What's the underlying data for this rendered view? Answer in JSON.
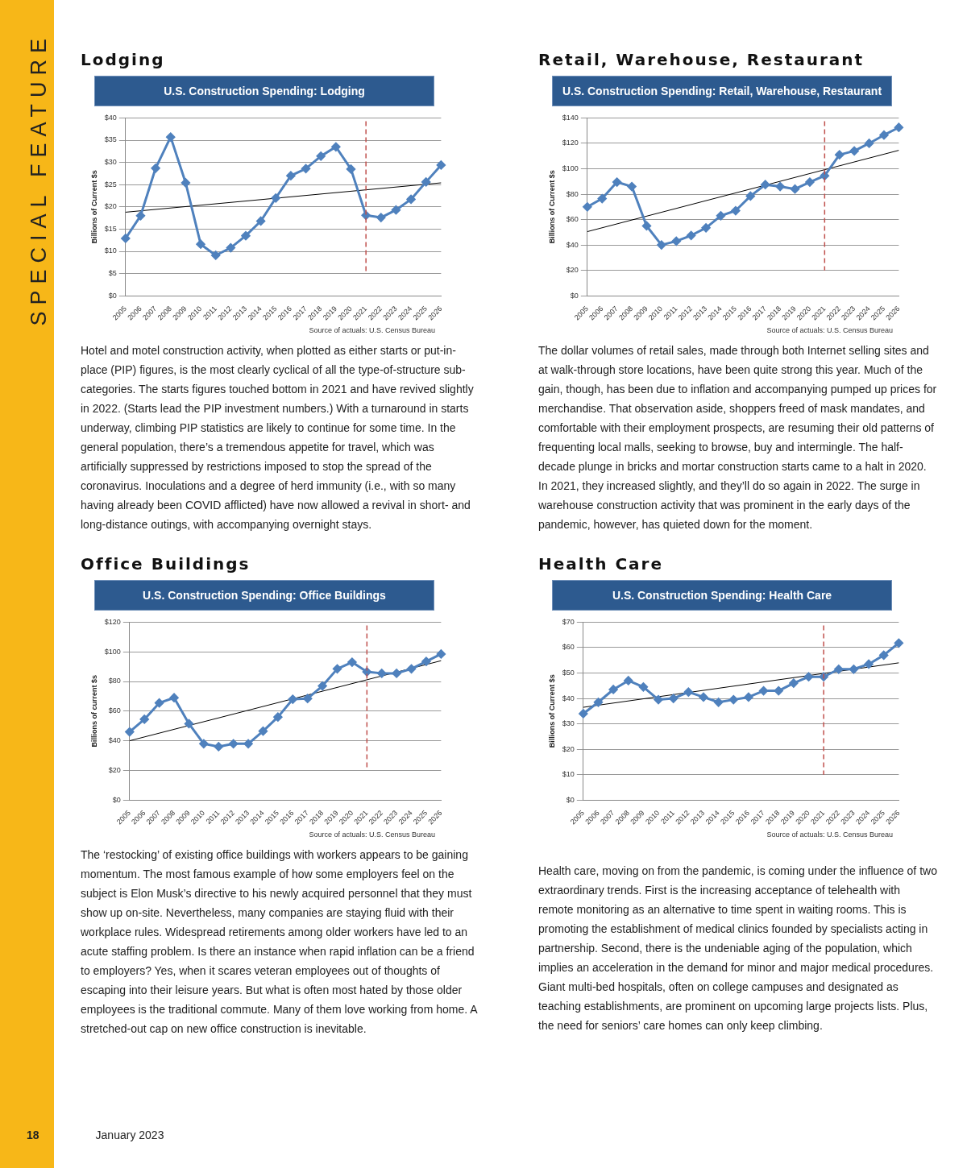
{
  "chart_data": [
    {
      "type": "line",
      "title": "Lodging",
      "subtitle": "U.S. Construction Spending: Lodging",
      "ylabel": "Billions of Current $s",
      "categories": [
        "2005",
        "2006",
        "2007",
        "2008",
        "2009",
        "2010",
        "2011",
        "2012",
        "2013",
        "2014",
        "2015",
        "2016",
        "2017",
        "2018",
        "2019",
        "2020",
        "2021",
        "2022",
        "2023",
        "2024",
        "2025",
        "2026"
      ],
      "series": [
        {
          "color": "#4f81bd",
          "marker": "diamond",
          "values": [
            12.9,
            18,
            28.7,
            35.7,
            25.4,
            11.6,
            9.1,
            10.8,
            13.5,
            16.8,
            22,
            27,
            28.6,
            31.4,
            33.5,
            28.5,
            18.1,
            17.6,
            19.3,
            21.7,
            25.6,
            29.4
          ]
        },
        {
          "color": "#000000",
          "marker": "none",
          "values": [
            18.8,
            null,
            null,
            null,
            null,
            null,
            null,
            null,
            null,
            null,
            null,
            null,
            null,
            null,
            null,
            null,
            null,
            null,
            null,
            null,
            null,
            25.4
          ]
        }
      ],
      "ylim": [
        0,
        40
      ],
      "yticks": [
        {
          "value": 0,
          "label": "$0"
        },
        {
          "value": 5,
          "label": "$5"
        },
        {
          "value": 10,
          "label": "$10"
        },
        {
          "value": 15,
          "label": "$15"
        },
        {
          "value": 20,
          "label": "$20"
        },
        {
          "value": 25,
          "label": "$25"
        },
        {
          "value": 30,
          "label": "$30"
        },
        {
          "value": 35,
          "label": "$35"
        },
        {
          "value": 40,
          "label": "$40"
        }
      ],
      "grid": "y",
      "ref_lines": [
        {
          "axis": "x",
          "value": "2021",
          "color": "#c0504d",
          "line_style": "dashed"
        }
      ],
      "annotations": [
        "Source of actuals: U.S. Census Bureau",
        "Hotel and motel construction activity, when plotted as either starts or put-in-place (PIP) figures, is the most clearly cyclical of all the type-of-structure sub-categories. The starts figures touched bottom in 2021 and have revived slightly in 2022. (Starts lead the PIP investment numbers.) With a turnaround in starts underway, climbing PIP statistics are likely to continue for some time. In the general population, there’s a tremendous appetite for travel, which was artificially suppressed by restrictions imposed to stop the spread of the coronavirus. Inoculations and a degree of herd immunity (i.e., with so many having already been COVID afflicted) have now allowed a revival in short- and long-distance outings, with accompanying overnight stays.",
        "SPECIAL FEATURE",
        "18",
        "January 2023"
      ]
    },
    {
      "type": "line",
      "title": "Retail, Warehouse, Restaurant",
      "subtitle": "U.S. Construction Spending: Retail, Warehouse, Restaurant",
      "ylabel": "Billions of Current $s",
      "categories": [
        "2005",
        "2006",
        "2007",
        "2008",
        "2009",
        "2010",
        "2011",
        "2012",
        "2013",
        "2014",
        "2015",
        "2016",
        "2017",
        "2018",
        "2019",
        "2020",
        "2021",
        "2022",
        "2023",
        "2024",
        "2025",
        "2026"
      ],
      "series": [
        {
          "color": "#4f81bd",
          "marker": "diamond",
          "values": [
            70,
            76.5,
            89.5,
            86,
            55,
            40,
            43,
            47.5,
            53.5,
            63,
            67,
            78.5,
            87.5,
            86,
            84,
            89.5,
            94.5,
            111,
            114,
            120,
            126.5,
            132.5
          ]
        },
        {
          "color": "#000000",
          "marker": "none",
          "values": [
            50.5,
            null,
            null,
            null,
            null,
            null,
            null,
            null,
            null,
            null,
            null,
            null,
            null,
            null,
            null,
            null,
            null,
            null,
            null,
            null,
            null,
            114.5
          ]
        }
      ],
      "ylim": [
        0,
        140
      ],
      "yticks": [
        {
          "value": 0,
          "label": "$0"
        },
        {
          "value": 20,
          "label": "$20"
        },
        {
          "value": 40,
          "label": "$40"
        },
        {
          "value": 60,
          "label": "$60"
        },
        {
          "value": 80,
          "label": "$80"
        },
        {
          "value": 100,
          "label": "$100"
        },
        {
          "value": 120,
          "label": "$120"
        },
        {
          "value": 140,
          "label": "$140"
        }
      ],
      "grid": "y",
      "ref_lines": [
        {
          "axis": "x",
          "value": "2021",
          "color": "#c0504d",
          "line_style": "dashed"
        }
      ],
      "annotations": [
        "Source of actuals: U.S. Census Bureau",
        "The dollar volumes of retail sales, made through both Internet selling sites and at walk-through store locations, have been quite strong this year. Much of the gain, though, has been due to inflation and accompanying pumped up prices for merchandise. That observation aside, shoppers freed of mask mandates, and comfortable with their employment prospects, are resuming their old patterns of frequenting local malls, seeking to browse, buy and intermingle. The half-decade plunge in bricks and mortar construction starts came to a halt in 2020. In 2021, they increased slightly, and they’ll do so again in 2022. The surge in warehouse construction activity that was prominent in the early days of the pandemic, however, has quieted down for the moment."
      ]
    },
    {
      "type": "line",
      "title": "Office Buildings",
      "subtitle": "U.S. Construction Spending: Office Buildings",
      "ylabel": "Billions of current $s",
      "categories": [
        "2005",
        "2006",
        "2007",
        "2008",
        "2009",
        "2010",
        "2011",
        "2012",
        "2013",
        "2014",
        "2015",
        "2016",
        "2017",
        "2018",
        "2019",
        "2020",
        "2021",
        "2022",
        "2023",
        "2024",
        "2025",
        "2026"
      ],
      "series": [
        {
          "color": "#4f81bd",
          "marker": "diamond",
          "values": [
            46,
            54.5,
            65.5,
            69,
            51.5,
            38,
            36,
            38,
            38,
            46.5,
            56,
            68,
            68.5,
            77,
            88.5,
            93,
            86.5,
            85.5,
            85.5,
            88.5,
            93.5,
            98.5
          ]
        },
        {
          "color": "#000000",
          "marker": "none",
          "values": [
            40,
            null,
            null,
            null,
            null,
            null,
            null,
            null,
            null,
            null,
            null,
            null,
            null,
            null,
            null,
            null,
            null,
            null,
            null,
            null,
            null,
            94
          ]
        }
      ],
      "ylim": [
        0,
        120
      ],
      "yticks": [
        {
          "value": 0,
          "label": "$0"
        },
        {
          "value": 20,
          "label": "$20"
        },
        {
          "value": 40,
          "label": "$40"
        },
        {
          "value": 60,
          "label": "$60"
        },
        {
          "value": 80,
          "label": "$80"
        },
        {
          "value": 100,
          "label": "$100"
        },
        {
          "value": 120,
          "label": "$120"
        }
      ],
      "grid": "y",
      "ref_lines": [
        {
          "axis": "x",
          "value": "2021",
          "color": "#c0504d",
          "line_style": "dashed"
        }
      ],
      "annotations": [
        "Source of actuals: U.S. Census Bureau",
        "The ‘restocking’ of existing office buildings with workers appears to be gaining momentum. The most famous example of how some employers feel on the subject is Elon Musk’s directive to his newly acquired personnel that they must show up on-site. Nevertheless, many companies are staying fluid with their workplace rules. Widespread retirements among older workers have led to an acute staffing problem. Is there an instance when rapid inflation can be a friend to employers? Yes, when it scares veteran employees out of thoughts of escaping into their leisure years. But what is often most hated by those older employees is the traditional commute. Many of them love working from home. A stretched-out cap on new office construction is inevitable."
      ]
    },
    {
      "type": "line",
      "title": "Health Care",
      "subtitle": "U.S. Construction Spending: Health Care",
      "ylabel": "Billions of Current $s",
      "categories": [
        "2005",
        "2006",
        "2007",
        "2008",
        "2009",
        "2010",
        "2011",
        "2012",
        "2013",
        "2014",
        "2015",
        "2016",
        "2017",
        "2018",
        "2019",
        "2020",
        "2021",
        "2022",
        "2023",
        "2024",
        "2025",
        "2026"
      ],
      "series": [
        {
          "color": "#4f81bd",
          "marker": "diamond",
          "values": [
            34,
            38.5,
            43.5,
            47,
            44.5,
            39.5,
            40,
            42.5,
            40.5,
            38.5,
            39.5,
            40.5,
            43,
            43,
            46,
            48.5,
            48.5,
            51.5,
            51.5,
            53.5,
            57,
            61.8
          ]
        },
        {
          "color": "#000000",
          "marker": "none",
          "values": [
            36.5,
            null,
            null,
            null,
            null,
            null,
            null,
            null,
            null,
            null,
            null,
            null,
            null,
            null,
            null,
            null,
            null,
            null,
            null,
            null,
            null,
            54
          ]
        }
      ],
      "ylim": [
        0,
        70
      ],
      "yticks": [
        {
          "value": 0,
          "label": "$0"
        },
        {
          "value": 10,
          "label": "$10"
        },
        {
          "value": 20,
          "label": "$20"
        },
        {
          "value": 30,
          "label": "$30"
        },
        {
          "value": 40,
          "label": "$40"
        },
        {
          "value": 50,
          "label": "$50"
        },
        {
          "value": 60,
          "label": "$60"
        },
        {
          "value": 70,
          "label": "$70"
        }
      ],
      "grid": "y",
      "ref_lines": [
        {
          "axis": "x",
          "value": "2021",
          "color": "#c0504d",
          "line_style": "dashed"
        }
      ],
      "annotations": [
        "Source of actuals: U.S. Census Bureau",
        "Health care, moving on from the pandemic, is coming under the influence of two extraordinary trends. First is the increasing acceptance of telehealth with remote monitoring as an alternative to time spent in waiting rooms. This is promoting the establishment of medical clinics founded by specialists acting in partnership. Second, there is the undeniable aging of the population, which implies an acceleration in the demand for minor and major medical procedures. Giant multi-bed hospitals, often on college campuses and designated as teaching establishments, are prominent on upcoming large projects lists. Plus, the need for seniors’ care homes can only keep climbing."
      ]
    }
  ]
}
